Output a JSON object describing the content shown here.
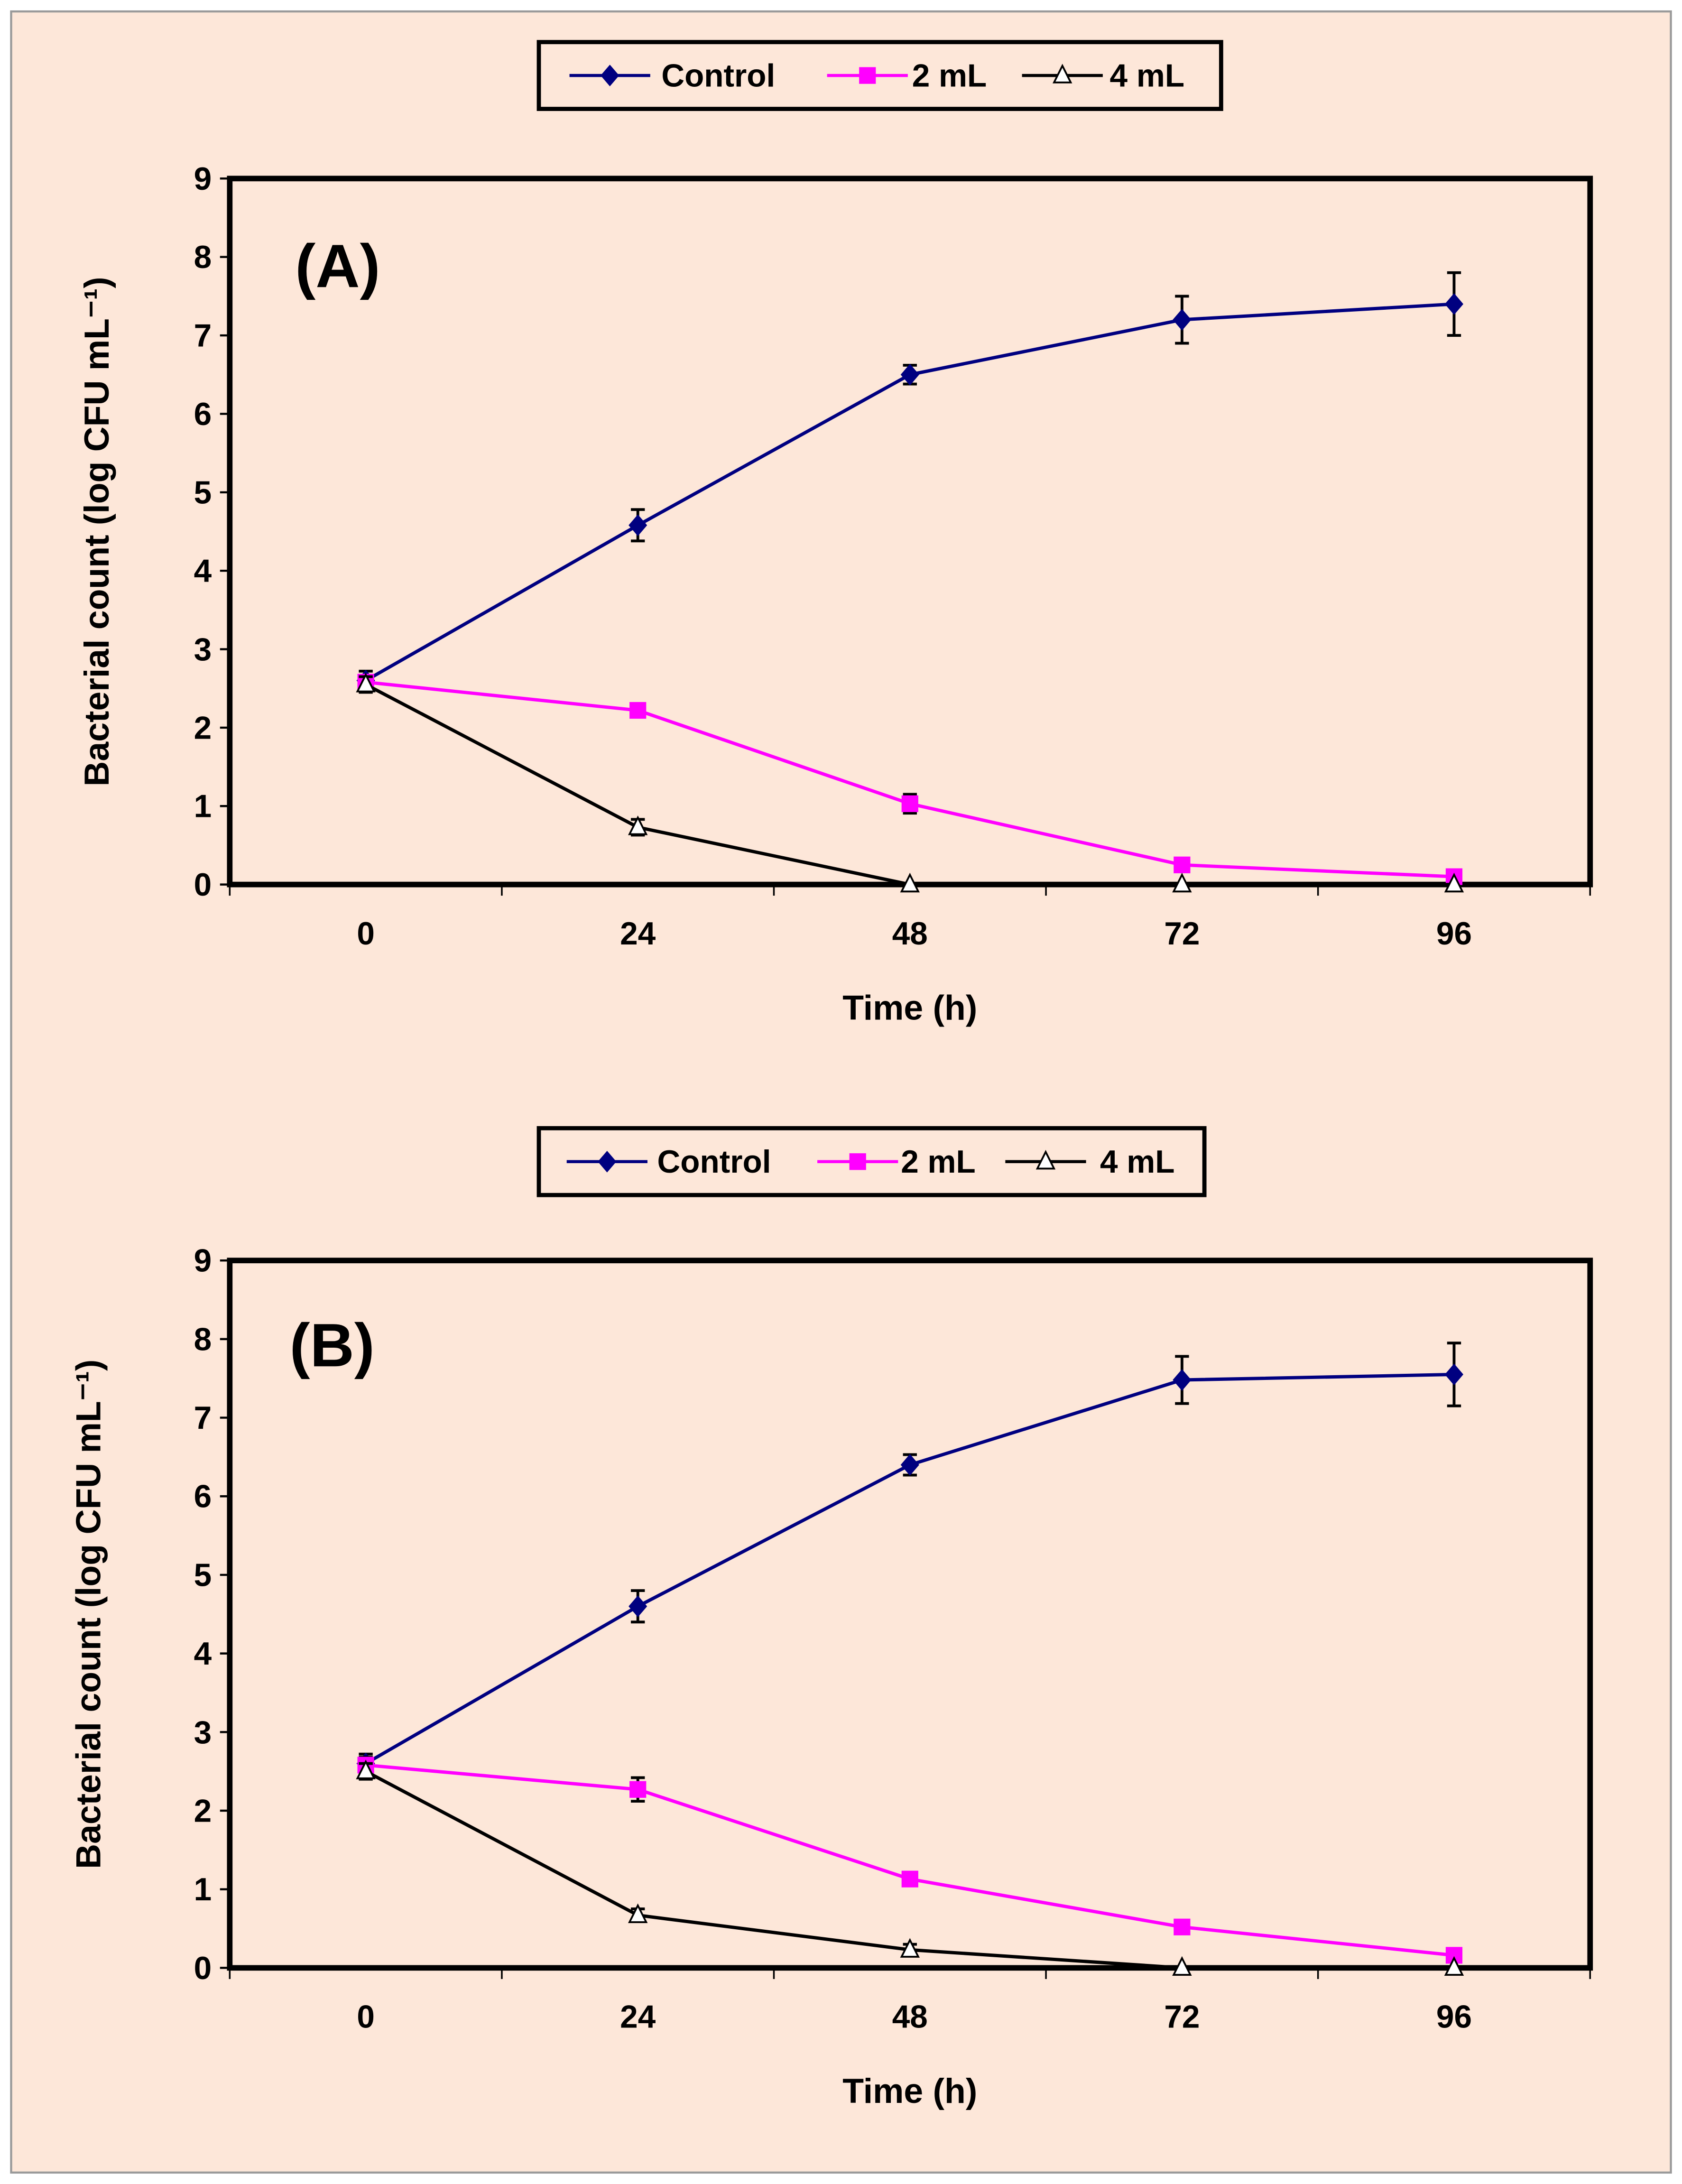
{
  "colors": {
    "background": "#FDE7D9",
    "control": "#000080",
    "ml2": "#FF00FF",
    "ml4": "#000000"
  },
  "chart_data": [
    {
      "type": "line",
      "panel_label": "(A)",
      "xlabel": "Time (h)",
      "ylabel": "Bacterial count (log CFU mL⁻¹)",
      "categories": [
        "0",
        "24",
        "48",
        "72",
        "96"
      ],
      "ylim": [
        0,
        9
      ],
      "yticks": [
        "0",
        "1",
        "2",
        "3",
        "4",
        "5",
        "6",
        "7",
        "8",
        "9"
      ],
      "legend_position": "top-center",
      "series": [
        {
          "name": "Control",
          "marker": "diamond",
          "values": [
            2.6,
            4.58,
            6.5,
            7.2,
            7.4
          ],
          "errors": [
            0.12,
            0.2,
            0.12,
            0.3,
            0.4
          ]
        },
        {
          "name": "2 mL",
          "marker": "square",
          "values": [
            2.58,
            2.22,
            1.03,
            0.25,
            0.1
          ],
          "errors": [
            0.08,
            0.08,
            0.12,
            0.05,
            0.05
          ]
        },
        {
          "name": "4 mL",
          "marker": "triangle",
          "values": [
            2.55,
            0.73,
            0,
            0,
            0
          ],
          "errors": [
            0.1,
            0.1,
            0,
            0,
            0
          ]
        }
      ]
    },
    {
      "type": "line",
      "panel_label": "(B)",
      "xlabel": "Time (h)",
      "ylabel": "Bacterial count (log CFU mL⁻¹)",
      "categories": [
        "0",
        "24",
        "48",
        "72",
        "96"
      ],
      "ylim": [
        0,
        9
      ],
      "yticks": [
        "0",
        "1",
        "2",
        "3",
        "4",
        "5",
        "6",
        "7",
        "8",
        "9"
      ],
      "legend_position": "top-center",
      "series": [
        {
          "name": "Control",
          "marker": "diamond",
          "values": [
            2.6,
            4.6,
            6.4,
            7.48,
            7.55
          ],
          "errors": [
            0.12,
            0.2,
            0.13,
            0.3,
            0.4
          ]
        },
        {
          "name": "2 mL",
          "marker": "square",
          "values": [
            2.58,
            2.27,
            1.13,
            0.52,
            0.16
          ],
          "errors": [
            0.1,
            0.15,
            0.07,
            0.05,
            0.05
          ]
        },
        {
          "name": "4 mL",
          "marker": "triangle",
          "values": [
            2.5,
            0.67,
            0.23,
            0,
            0
          ],
          "errors": [
            0.1,
            0.08,
            0.07,
            0,
            0
          ]
        }
      ]
    }
  ]
}
